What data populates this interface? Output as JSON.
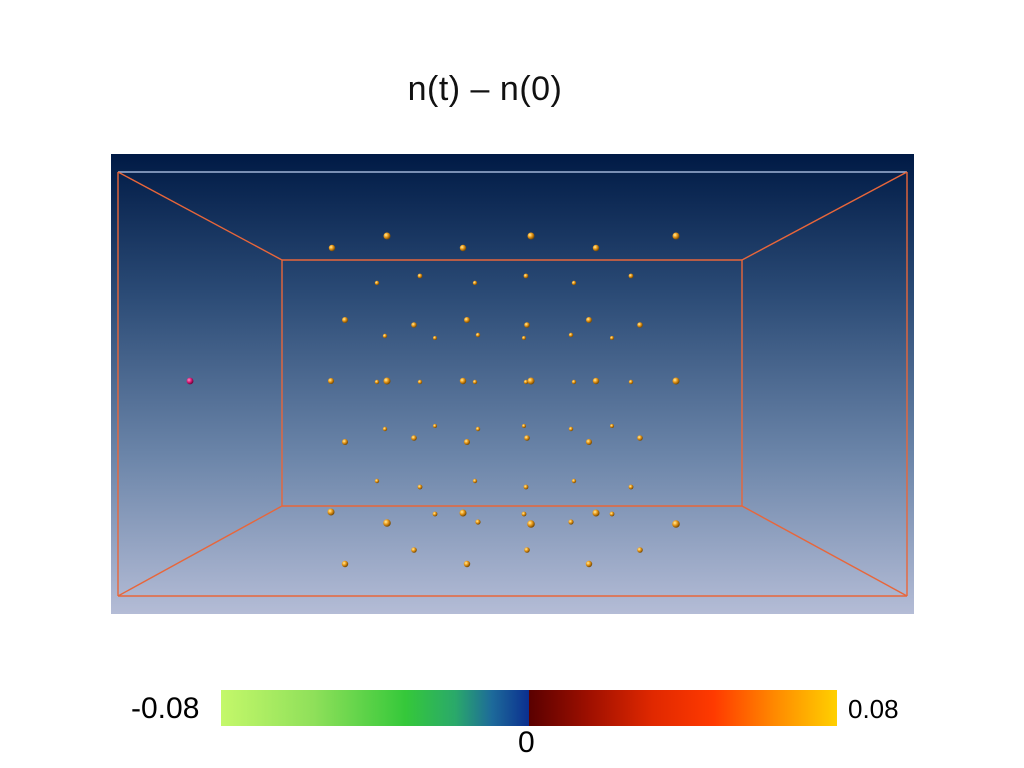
{
  "title": "n(t) – n(0)",
  "colorbar": {
    "min_label": "-0.08",
    "mid_label": "0",
    "max_label": "0.08",
    "min_value": -0.08,
    "max_value": 0.08,
    "colors": [
      "#c4f86a",
      "#35c83a",
      "#0b2f8f",
      "#5a0000",
      "#ff3a00",
      "#ffd000"
    ]
  },
  "scene": {
    "background_top_color": "#001a45",
    "background_bottom_color": "#b4bcd6",
    "box_edge_color": "#e8663a",
    "sphere_color": "#f0a020",
    "outlier_sphere_color": "#e0207a"
  }
}
